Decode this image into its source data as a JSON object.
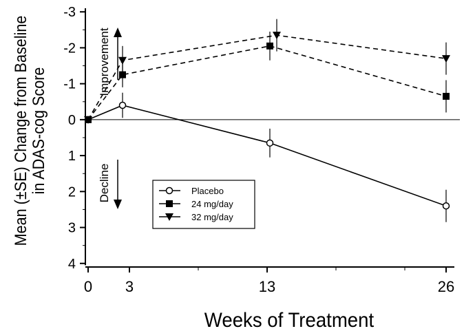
{
  "chart_data": {
    "type": "line",
    "xlabel": "Weeks of Treatment",
    "ylabel_line1": "Mean (±SE) Change from Baseline",
    "ylabel_line2": "in ADAS-cog Score",
    "y_axis_inverted": true,
    "ylim": [
      -3.1,
      4.1
    ],
    "xlim": [
      -0.2,
      27
    ],
    "x_ticks": [
      0,
      3,
      13,
      26
    ],
    "x_tick_labels": [
      "0",
      "3",
      "13",
      "26"
    ],
    "y_ticks": [
      -3,
      -2,
      -1,
      0,
      1,
      2,
      3,
      4
    ],
    "y_tick_labels": [
      "-3",
      "-2",
      "-1",
      "0",
      "1",
      "2",
      "3",
      "4"
    ],
    "zero_line": true,
    "grid": false,
    "annotations": {
      "improvement": "Improvement",
      "decline": "Decline"
    },
    "legend_position": "lower-left, inside",
    "series": [
      {
        "name": "Placebo",
        "marker": "open-circle",
        "line_style": "solid",
        "x": [
          0,
          2.5,
          13.2,
          26
        ],
        "y": [
          0,
          -0.4,
          0.65,
          2.4
        ],
        "se": [
          0,
          0.35,
          0.4,
          0.45
        ]
      },
      {
        "name": "24 mg/day",
        "marker": "filled-square",
        "line_style": "dashed",
        "x": [
          0,
          2.5,
          13.2,
          26
        ],
        "y": [
          0,
          -1.25,
          -2.05,
          -0.65
        ],
        "se": [
          0,
          0.35,
          0.4,
          0.45
        ]
      },
      {
        "name": "32 mg/day",
        "marker": "filled-triangle-down",
        "line_style": "dashed",
        "x": [
          0,
          2.5,
          13.7,
          26
        ],
        "y": [
          0,
          -1.65,
          -2.35,
          -1.7
        ],
        "se": [
          0,
          0.4,
          0.45,
          0.45
        ]
      }
    ]
  }
}
